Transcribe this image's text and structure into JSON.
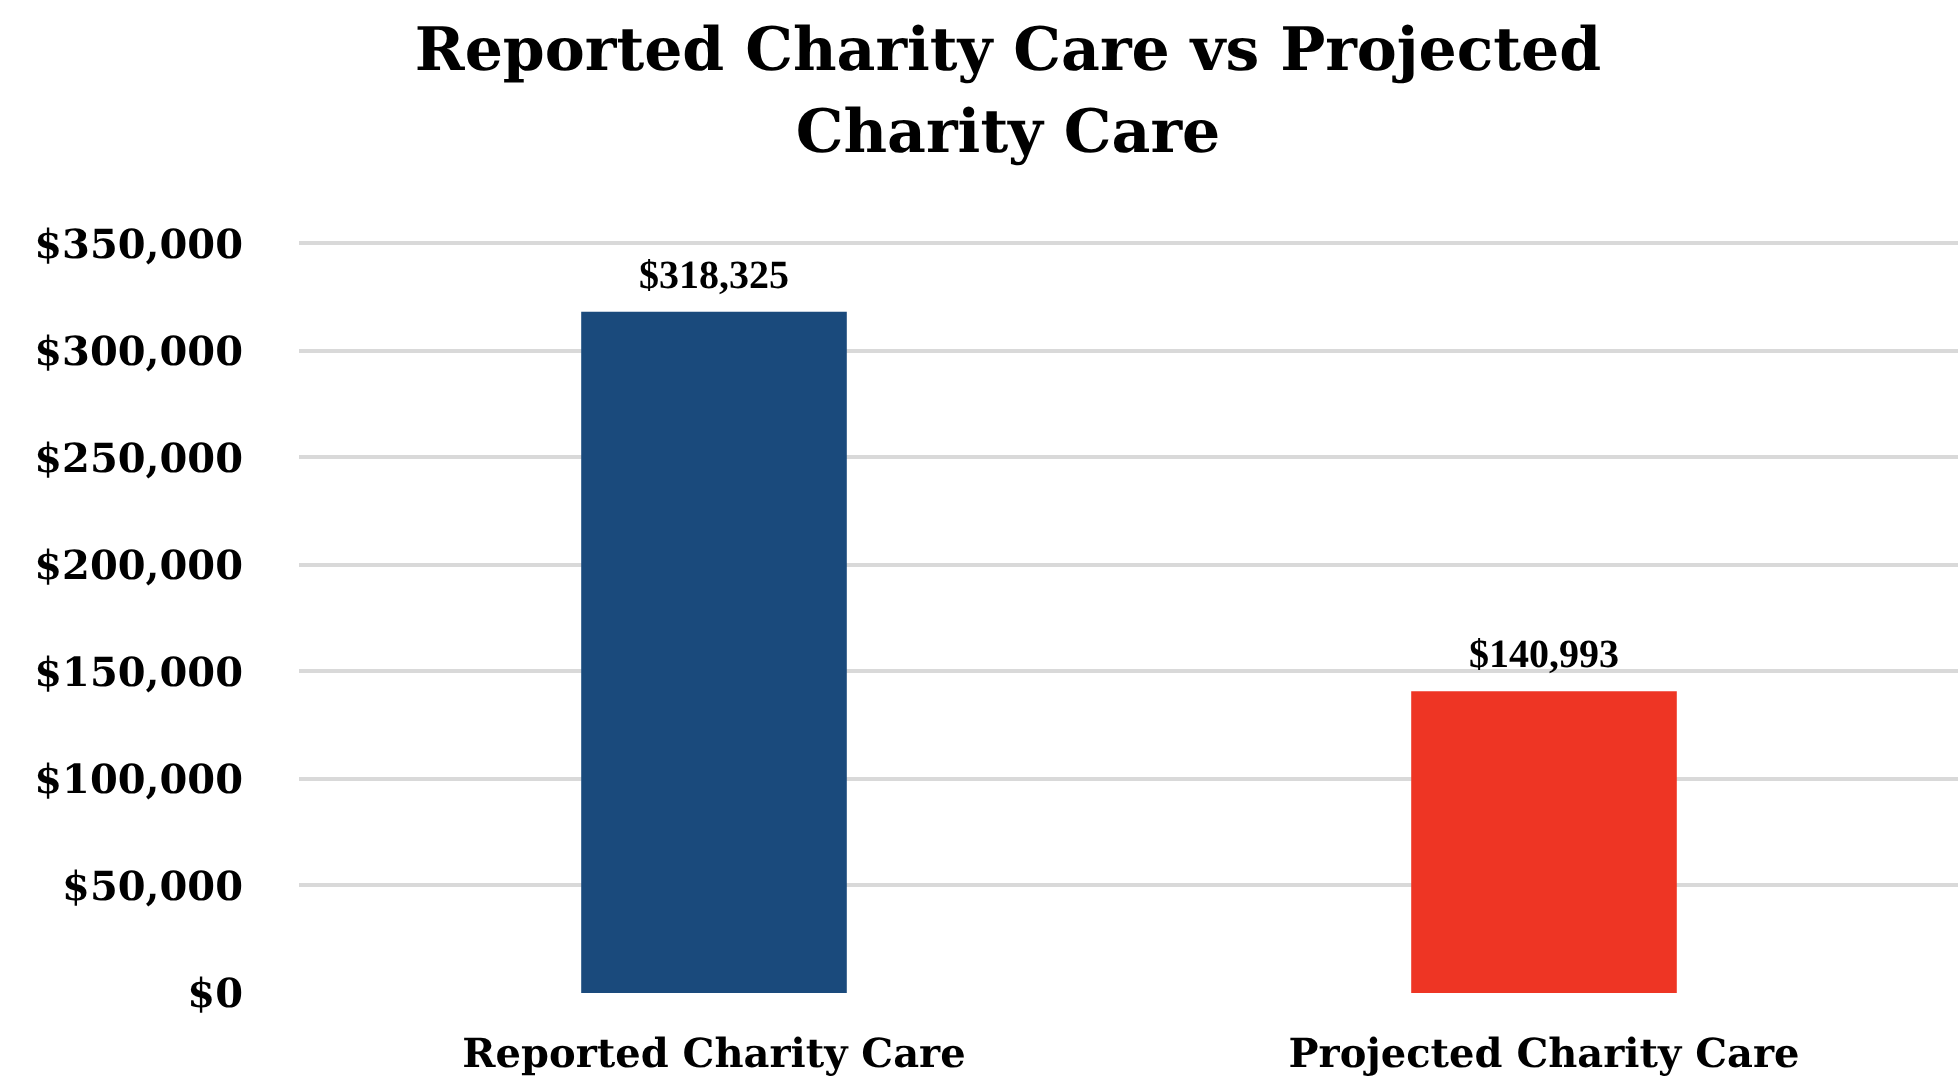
{
  "chart_data": {
    "type": "bar",
    "title": "Reported Charity Care vs Projected Charity Care",
    "categories": [
      "Reported Charity Care",
      "Projected Charity Care"
    ],
    "values": [
      318325,
      140993
    ],
    "colors": [
      "#1a4a7c",
      "#ee3524"
    ],
    "value_labels": [
      "$318,325",
      "$140,993"
    ],
    "ylim": [
      0,
      350000
    ],
    "yticks": [
      {
        "value": 0,
        "label": "$0"
      },
      {
        "value": 50000,
        "label": "$50,000"
      },
      {
        "value": 100000,
        "label": "$100,000"
      },
      {
        "value": 150000,
        "label": "$150,000"
      },
      {
        "value": 200000,
        "label": "$200,000"
      },
      {
        "value": 250000,
        "label": "$250,000"
      },
      {
        "value": 300000,
        "label": "$300,000"
      },
      {
        "value": 350000,
        "label": "$350,000"
      }
    ],
    "grid": "y"
  }
}
